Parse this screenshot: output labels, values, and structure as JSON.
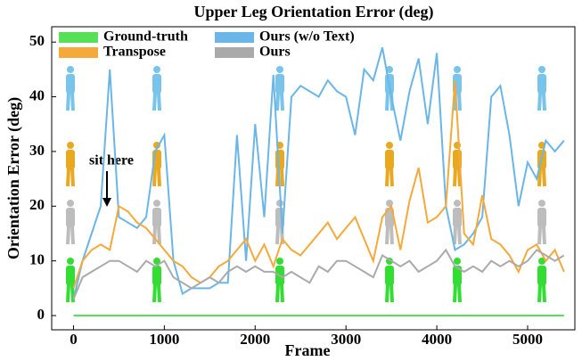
{
  "chart_data": {
    "type": "line",
    "title": "Upper Leg Orientation Error (deg)",
    "x_label": "Frame",
    "y_label": "Orientation Error (deg)",
    "annotation": "sit here",
    "x": [
      0,
      100,
      200,
      300,
      400,
      500,
      600,
      700,
      800,
      900,
      1000,
      1100,
      1200,
      1300,
      1400,
      1500,
      1600,
      1700,
      1800,
      1900,
      2000,
      2100,
      2200,
      2300,
      2400,
      2500,
      2600,
      2700,
      2800,
      2900,
      3000,
      3100,
      3200,
      3300,
      3400,
      3500,
      3600,
      3700,
      3800,
      3900,
      4000,
      4100,
      4200,
      4300,
      4400,
      4500,
      4600,
      4700,
      4800,
      4900,
      5000,
      5100,
      5200,
      5300,
      5400
    ],
    "series": [
      {
        "name": "Ground-truth",
        "color": "#55e055",
        "values": [
          0,
          0,
          0,
          0,
          0,
          0,
          0,
          0,
          0,
          0,
          0,
          0,
          0,
          0,
          0,
          0,
          0,
          0,
          0,
          0,
          0,
          0,
          0,
          0,
          0,
          0,
          0,
          0,
          0,
          0,
          0,
          0,
          0,
          0,
          0,
          0,
          0,
          0,
          0,
          0,
          0,
          0,
          0,
          0,
          0,
          0,
          0,
          0,
          0,
          0,
          0,
          0,
          0,
          0,
          0
        ]
      },
      {
        "name": "Transpose",
        "color": "#f4a93a",
        "values": [
          5,
          10,
          12,
          13,
          12,
          20,
          19,
          17,
          16,
          14,
          12,
          10,
          9,
          7,
          6,
          7,
          9,
          10,
          12,
          14,
          10,
          13,
          9,
          14,
          12,
          11,
          13,
          15,
          17,
          14,
          16,
          18,
          14,
          10,
          18,
          20,
          12,
          21,
          27,
          17,
          18,
          20,
          43,
          15,
          13,
          22,
          14,
          13,
          11,
          8,
          12,
          13,
          10,
          12,
          8
        ]
      },
      {
        "name": "Ours (w/o Text)",
        "color": "#6ab6e8",
        "values": [
          3,
          10,
          15,
          20,
          45,
          18,
          17,
          16,
          18,
          30,
          33,
          10,
          4,
          5,
          5,
          5,
          6,
          6,
          33,
          10,
          35,
          18,
          44,
          15,
          40,
          42,
          41,
          40,
          43,
          41,
          40,
          33,
          45,
          43,
          49,
          40,
          32,
          41,
          47,
          35,
          48,
          20,
          12,
          13,
          15,
          18,
          40,
          42,
          33,
          20,
          28,
          25,
          32,
          30,
          32
        ]
      },
      {
        "name": "Ours",
        "color": "#aaaaaa",
        "values": [
          3,
          7,
          8,
          9,
          10,
          10,
          9,
          8,
          10,
          9,
          10,
          7,
          6,
          5,
          6,
          7,
          6,
          8,
          9,
          8,
          9,
          8,
          8,
          7,
          8,
          7,
          6,
          9,
          8,
          10,
          10,
          9,
          8,
          7,
          11,
          10,
          9,
          10,
          8,
          9,
          10,
          12,
          9,
          8,
          9,
          8,
          10,
          9,
          10,
          9,
          10,
          12,
          11,
          10,
          11
        ]
      }
    ],
    "xlim": [
      -240,
      5520
    ],
    "ylim": [
      -2.6,
      52.8
    ],
    "xticks": [
      0,
      1000,
      2000,
      3000,
      4000,
      5000
    ],
    "yticks": [
      0,
      10,
      20,
      30,
      40,
      50
    ]
  }
}
